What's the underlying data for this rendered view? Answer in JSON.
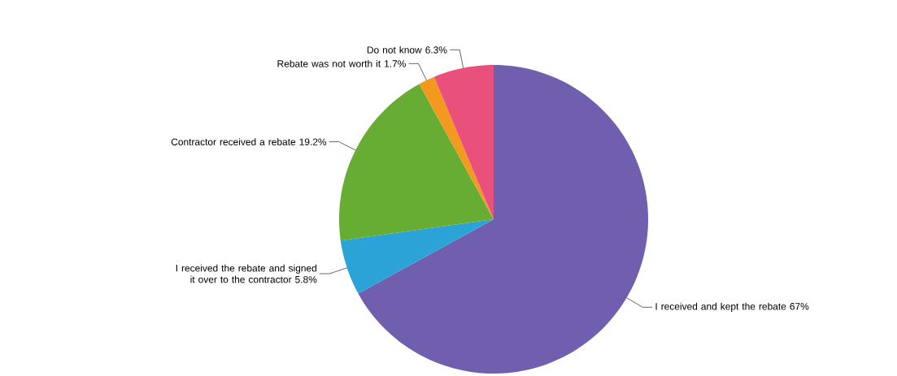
{
  "chart_data": {
    "type": "pie",
    "categories": [
      "I received and kept the rebate",
      "I received the rebate and signed it over to the contractor",
      "Contractor received a rebate",
      "Rebate was not worth it",
      "Do not know"
    ],
    "values": [
      67,
      5.8,
      19.2,
      1.7,
      6.3
    ],
    "value_labels": [
      "67%",
      "5.8%",
      "19.2%",
      "1.7%",
      "6.3%"
    ],
    "colors": [
      "#6f5fae",
      "#2ba3d6",
      "#67ad33",
      "#f39a1e",
      "#e9517c"
    ]
  }
}
